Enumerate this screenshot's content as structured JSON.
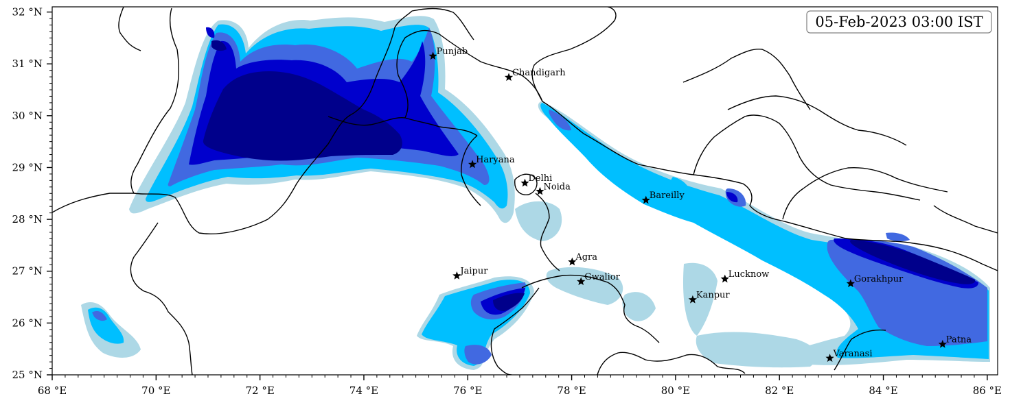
{
  "timestamp": "05-Feb-2023 03:00 IST",
  "lon_range": [
    68,
    86.2
  ],
  "lat_range": [
    25,
    32.1
  ],
  "x_ticks": [
    {
      "value": 68,
      "label": "68 °E"
    },
    {
      "value": 70,
      "label": "70 °E"
    },
    {
      "value": 72,
      "label": "72 °E"
    },
    {
      "value": 74,
      "label": "74 °E"
    },
    {
      "value": 76,
      "label": "76 °E"
    },
    {
      "value": 78,
      "label": "78 °E"
    },
    {
      "value": 80,
      "label": "80 °E"
    },
    {
      "value": 82,
      "label": "82 °E"
    },
    {
      "value": 84,
      "label": "84 °E"
    },
    {
      "value": 86,
      "label": "86 °E"
    }
  ],
  "y_ticks": [
    {
      "value": 25,
      "label": "25 °N"
    },
    {
      "value": 26,
      "label": "26 °N"
    },
    {
      "value": 27,
      "label": "27 °N"
    },
    {
      "value": 28,
      "label": "28 °N"
    },
    {
      "value": 29,
      "label": "29 °N"
    },
    {
      "value": 30,
      "label": "30 °N"
    },
    {
      "value": 31,
      "label": "31 °N"
    },
    {
      "value": 32,
      "label": "32 °N"
    }
  ],
  "cities": [
    {
      "name": "Punjab",
      "lon": 75.33,
      "lat": 31.15
    },
    {
      "name": "Chandigarh",
      "lon": 76.79,
      "lat": 30.74
    },
    {
      "name": "Haryana",
      "lon": 76.09,
      "lat": 29.06
    },
    {
      "name": "Delhi",
      "lon": 77.1,
      "lat": 28.7
    },
    {
      "name": "Noida",
      "lon": 77.39,
      "lat": 28.54
    },
    {
      "name": "Bareilly",
      "lon": 79.43,
      "lat": 28.37
    },
    {
      "name": "Agra",
      "lon": 78.01,
      "lat": 27.18
    },
    {
      "name": "Jaipur",
      "lon": 75.79,
      "lat": 26.91
    },
    {
      "name": "Gwalior",
      "lon": 78.18,
      "lat": 26.8
    },
    {
      "name": "Lucknow",
      "lon": 80.95,
      "lat": 26.85
    },
    {
      "name": "Kanpur",
      "lon": 80.33,
      "lat": 26.45
    },
    {
      "name": "Gorakhpur",
      "lon": 83.37,
      "lat": 26.76
    },
    {
      "name": "Varanasi",
      "lon": 82.97,
      "lat": 25.32
    },
    {
      "name": "Patna",
      "lon": 85.14,
      "lat": 25.59
    }
  ],
  "colors": {
    "level1": "#add8e6",
    "level2": "#00bfff",
    "level3": "#4169e1",
    "level4": "#0000cd",
    "level5": "#00008b",
    "border": "#000000"
  }
}
